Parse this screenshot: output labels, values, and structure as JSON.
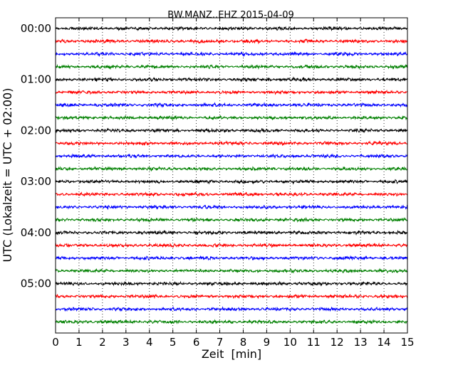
{
  "chart_data": {
    "type": "line",
    "title": "BW.MANZ..EHZ 2015-04-09",
    "xlabel": "Zeit  [min]",
    "ylabel": "UTC (Lokalzeit = UTC + 02:00)",
    "xlim": [
      0,
      15
    ],
    "x_ticks": [
      "0",
      "1",
      "2",
      "3",
      "4",
      "5",
      "6",
      "7",
      "8",
      "9",
      "10",
      "11",
      "12",
      "13",
      "14",
      "15"
    ],
    "y_tick_labels": [
      "00:00",
      "01:00",
      "02:00",
      "03:00",
      "04:00",
      "05:00"
    ],
    "trace_interval_min": 15,
    "trace_count": 24,
    "trace_colors": [
      "#000000",
      "#ff0000",
      "#0000ff",
      "#008000"
    ],
    "grid": "vertical dotted at each minute",
    "series": [
      {
        "start": "00:00",
        "color": "#000000"
      },
      {
        "start": "00:15",
        "color": "#ff0000"
      },
      {
        "start": "00:30",
        "color": "#0000ff"
      },
      {
        "start": "00:45",
        "color": "#008000"
      },
      {
        "start": "01:00",
        "color": "#000000"
      },
      {
        "start": "01:15",
        "color": "#ff0000"
      },
      {
        "start": "01:30",
        "color": "#0000ff"
      },
      {
        "start": "01:45",
        "color": "#008000"
      },
      {
        "start": "02:00",
        "color": "#000000"
      },
      {
        "start": "02:15",
        "color": "#ff0000"
      },
      {
        "start": "02:30",
        "color": "#0000ff"
      },
      {
        "start": "02:45",
        "color": "#008000"
      },
      {
        "start": "03:00",
        "color": "#000000"
      },
      {
        "start": "03:15",
        "color": "#ff0000"
      },
      {
        "start": "03:30",
        "color": "#0000ff"
      },
      {
        "start": "03:45",
        "color": "#008000"
      },
      {
        "start": "04:00",
        "color": "#000000"
      },
      {
        "start": "04:15",
        "color": "#ff0000"
      },
      {
        "start": "04:30",
        "color": "#0000ff"
      },
      {
        "start": "04:45",
        "color": "#008000"
      },
      {
        "start": "05:00",
        "color": "#000000"
      },
      {
        "start": "05:15",
        "color": "#ff0000"
      },
      {
        "start": "05:30",
        "color": "#0000ff"
      },
      {
        "start": "05:45",
        "color": "#008000"
      }
    ]
  }
}
